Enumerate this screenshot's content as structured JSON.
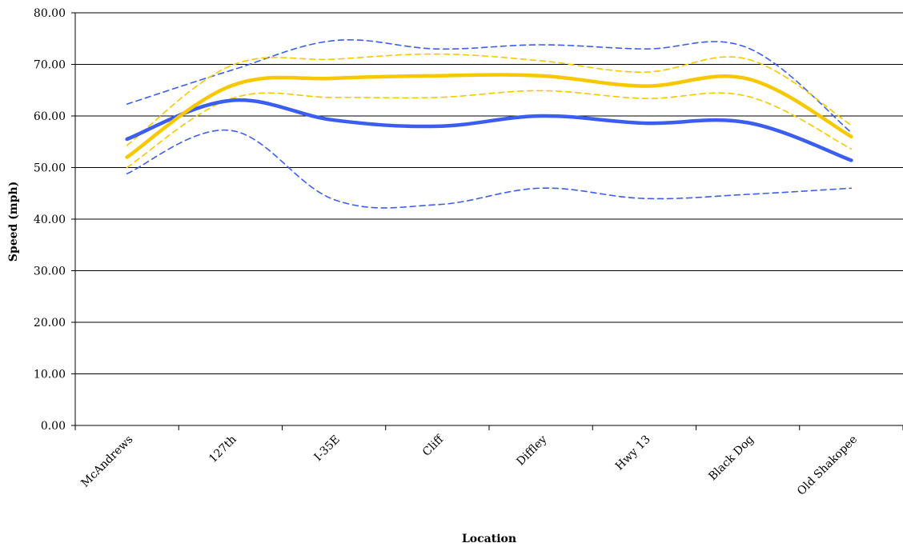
{
  "chart_data": {
    "type": "line",
    "title": "",
    "xlabel": "Location",
    "ylabel": "Speed (mph)",
    "ylim": [
      0,
      80
    ],
    "ytick_step": 10,
    "ytick_labels": [
      "0.00",
      "10.00",
      "20.00",
      "30.00",
      "40.00",
      "50.00",
      "60.00",
      "70.00",
      "80.00"
    ],
    "categories": [
      "McAndrews",
      "127th",
      "I-35E",
      "Cliff",
      "Diffley",
      "Hwy 13",
      "Black Dog",
      "Old Shakopee"
    ],
    "grid": "horizontal",
    "legend": "none",
    "series": [
      {
        "key": "blue_upper",
        "color": "#3b5ef0",
        "dashed": true,
        "thick": false,
        "values": [
          62.3,
          68.8,
          74.6,
          73.0,
          73.8,
          73.0,
          73.2,
          56.8
        ]
      },
      {
        "key": "blue_mean",
        "color": "#3b5ef0",
        "dashed": false,
        "thick": true,
        "values": [
          55.5,
          63.0,
          59.2,
          58.0,
          60.0,
          58.6,
          58.7,
          51.4
        ]
      },
      {
        "key": "blue_lower",
        "color": "#3b5ef0",
        "dashed": true,
        "thick": false,
        "values": [
          48.8,
          57.2,
          43.8,
          42.8,
          46.0,
          44.0,
          44.8,
          46.0
        ]
      },
      {
        "key": "yellow_upper",
        "color": "#f7c800",
        "dashed": true,
        "thick": false,
        "values": [
          54.3,
          69.7,
          71.0,
          72.0,
          70.7,
          68.5,
          71.0,
          58.2
        ]
      },
      {
        "key": "yellow_mean",
        "color": "#f7c800",
        "dashed": false,
        "thick": true,
        "values": [
          52.0,
          65.8,
          67.3,
          67.8,
          67.8,
          65.8,
          67.2,
          56.0
        ]
      },
      {
        "key": "yellow_lower",
        "color": "#f7c800",
        "dashed": true,
        "thick": false,
        "values": [
          50.0,
          63.3,
          63.6,
          63.6,
          64.9,
          63.4,
          63.8,
          53.6
        ]
      }
    ]
  }
}
